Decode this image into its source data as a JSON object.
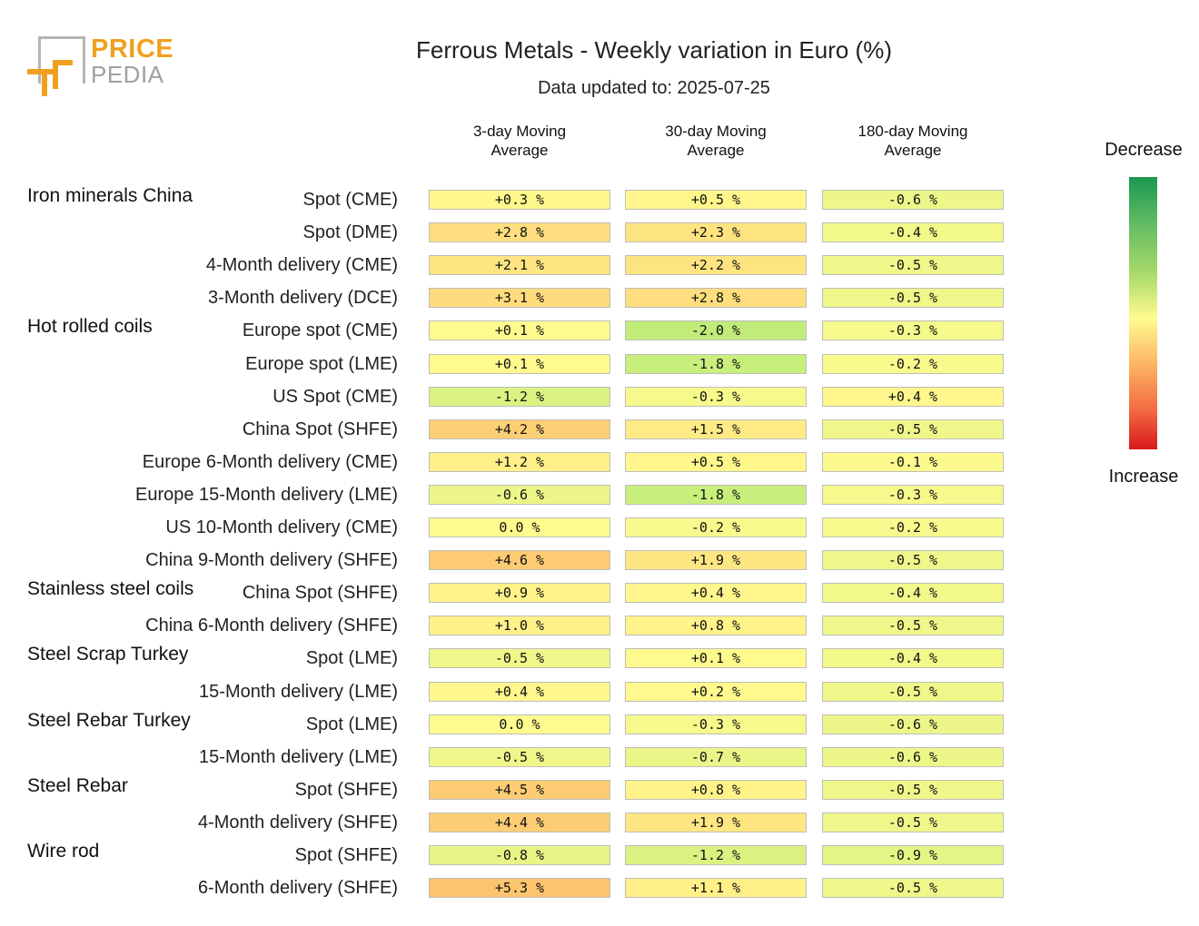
{
  "logo": {
    "line1": "PRICE",
    "line2": "PEDIA"
  },
  "chart_data": {
    "type": "table",
    "title": "Ferrous Metals - Weekly variation in Euro (%)",
    "subtitle": "Data updated to: 2025-07-25",
    "columns": [
      "3-day Moving Average",
      "30-day Moving Average",
      "180-day Moving Average"
    ],
    "column_lines": [
      [
        "3-day Moving",
        "Average"
      ],
      [
        "30-day Moving",
        "Average"
      ],
      [
        "180-day Moving",
        "Average"
      ]
    ],
    "legend": {
      "top": "Decrease",
      "bottom": "Increase",
      "colors": [
        "#1a9850",
        "#a6d96a",
        "#fffb8f",
        "#fdae61",
        "#d7191c"
      ]
    },
    "groups": [
      {
        "name": "Iron minerals China",
        "rows": [
          {
            "label": "Spot (CME)",
            "values": [
              0.3,
              0.5,
              -0.6
            ]
          },
          {
            "label": "Spot (DME)",
            "values": [
              2.8,
              2.3,
              -0.4
            ]
          },
          {
            "label": "4-Month delivery (CME)",
            "values": [
              2.1,
              2.2,
              -0.5
            ]
          },
          {
            "label": "3-Month delivery (DCE)",
            "values": [
              3.1,
              2.8,
              -0.5
            ]
          }
        ]
      },
      {
        "name": "Hot rolled coils",
        "rows": [
          {
            "label": "Europe spot (CME)",
            "values": [
              0.1,
              -2.0,
              -0.3
            ]
          },
          {
            "label": "Europe spot (LME)",
            "values": [
              0.1,
              -1.8,
              -0.2
            ]
          },
          {
            "label": "US Spot (CME)",
            "values": [
              -1.2,
              -0.3,
              0.4
            ]
          },
          {
            "label": "China Spot (SHFE)",
            "values": [
              4.2,
              1.5,
              -0.5
            ]
          },
          {
            "label": "Europe 6-Month delivery (CME)",
            "values": [
              1.2,
              0.5,
              -0.1
            ]
          },
          {
            "label": "Europe 15-Month delivery (LME)",
            "values": [
              -0.6,
              -1.8,
              -0.3
            ]
          },
          {
            "label": "US 10-Month delivery (CME)",
            "values": [
              0.0,
              -0.2,
              -0.2
            ]
          },
          {
            "label": "China 9-Month delivery (SHFE)",
            "values": [
              4.6,
              1.9,
              -0.5
            ]
          }
        ]
      },
      {
        "name": "Stainless steel coils",
        "rows": [
          {
            "label": "China Spot (SHFE)",
            "values": [
              0.9,
              0.4,
              -0.4
            ]
          },
          {
            "label": "China 6-Month delivery (SHFE)",
            "values": [
              1.0,
              0.8,
              -0.5
            ]
          }
        ]
      },
      {
        "name": "Steel Scrap Turkey",
        "rows": [
          {
            "label": "Spot (LME)",
            "values": [
              -0.5,
              0.1,
              -0.4
            ]
          },
          {
            "label": "15-Month delivery (LME)",
            "values": [
              0.4,
              0.2,
              -0.5
            ]
          }
        ]
      },
      {
        "name": "Steel Rebar Turkey",
        "rows": [
          {
            "label": "Spot (LME)",
            "values": [
              0.0,
              -0.3,
              -0.6
            ]
          },
          {
            "label": "15-Month delivery (LME)",
            "values": [
              -0.5,
              -0.7,
              -0.6
            ]
          }
        ]
      },
      {
        "name": "Steel Rebar",
        "rows": [
          {
            "label": "Spot (SHFE)",
            "values": [
              4.5,
              0.8,
              -0.5
            ]
          },
          {
            "label": "4-Month delivery (SHFE)",
            "values": [
              4.4,
              1.9,
              -0.5
            ]
          }
        ]
      },
      {
        "name": "Wire rod",
        "rows": [
          {
            "label": "Spot (SHFE)",
            "values": [
              -0.8,
              -1.2,
              -0.9
            ]
          },
          {
            "label": "6-Month delivery (SHFE)",
            "values": [
              5.3,
              1.1,
              -0.5
            ]
          }
        ]
      }
    ]
  }
}
